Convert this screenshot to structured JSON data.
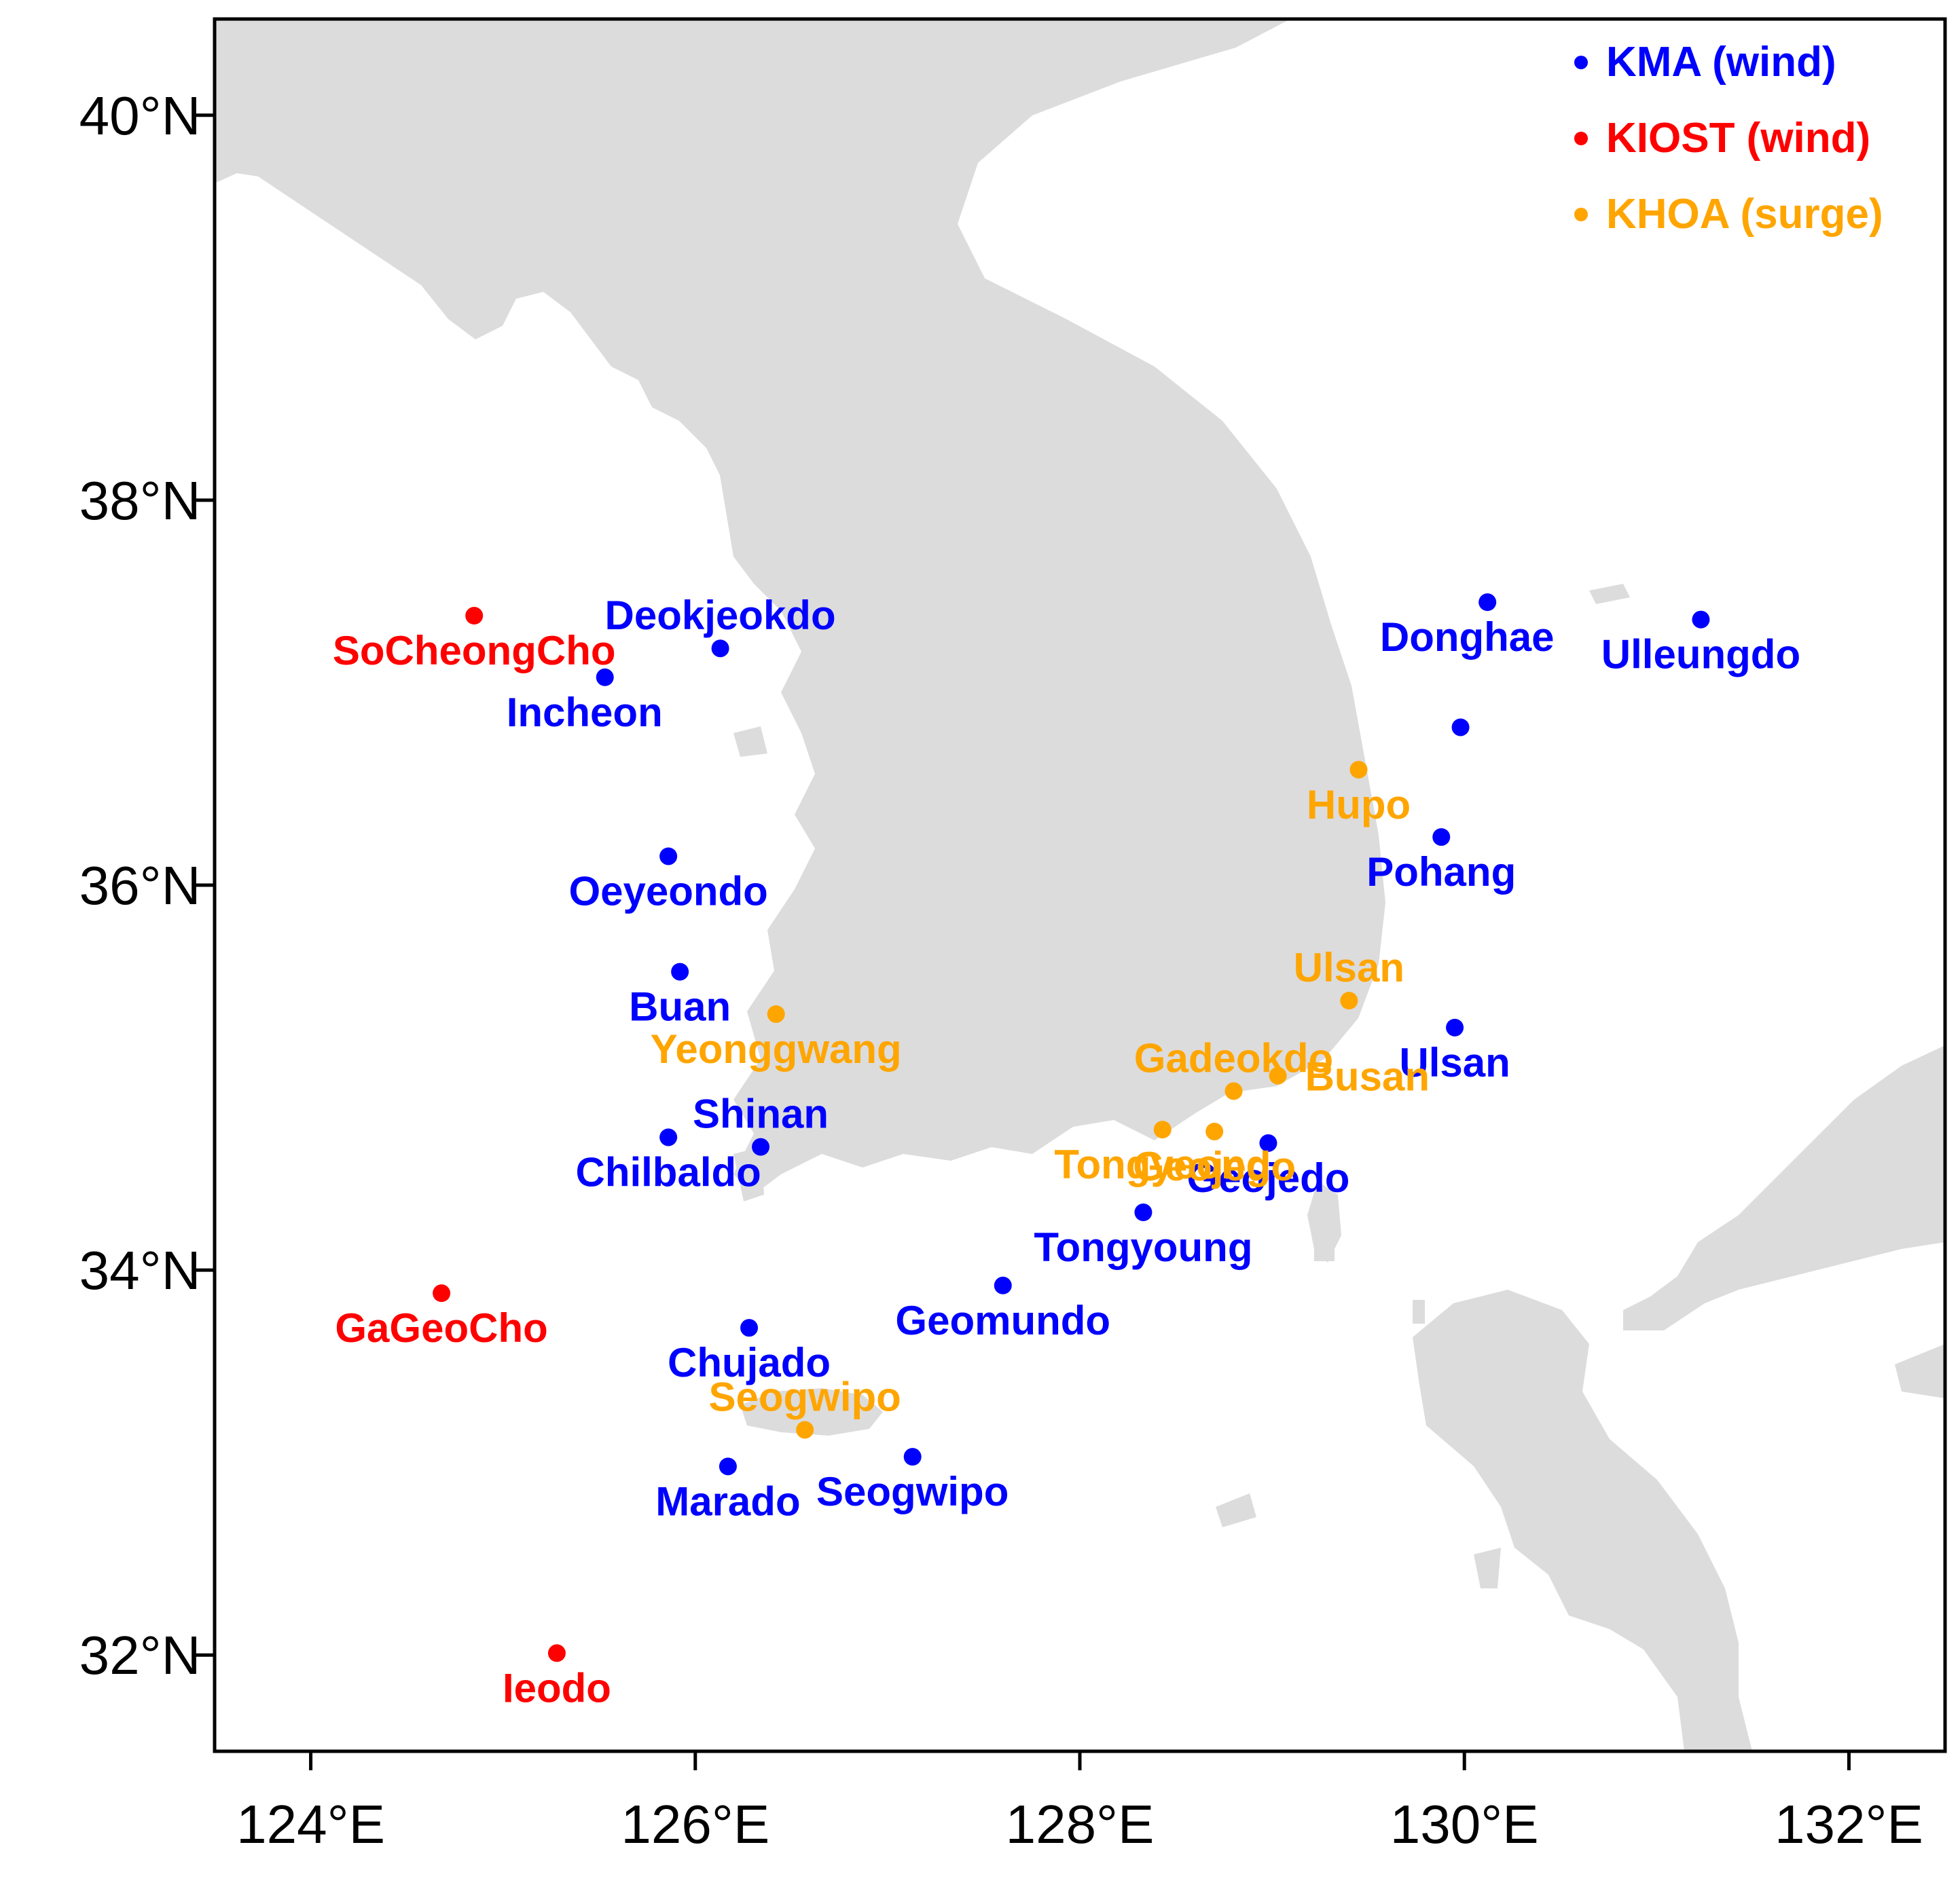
{
  "map": {
    "type": "station-map",
    "region": "Korean Peninsula and surrounding seas",
    "extent": {
      "lon": [
        123.5,
        132.5
      ],
      "lat": [
        31.5,
        40.5
      ]
    },
    "x_ticks": [
      "124°E",
      "126°E",
      "128°E",
      "130°E",
      "132°E"
    ],
    "x_tick_values": [
      124,
      126,
      128,
      130,
      132
    ],
    "y_ticks": [
      "32°N",
      "34°N",
      "36°N",
      "38°N",
      "40°N"
    ],
    "y_tick_values": [
      32,
      34,
      36,
      38,
      40
    ],
    "colors": {
      "land": "#dcdcdc",
      "ocean": "#ffffff",
      "frame": "#000000",
      "KMA": "#0000ff",
      "KIOST": "#ff0000",
      "KHOA": "#ffa500"
    }
  },
  "legend": {
    "position": "top-right",
    "items": [
      {
        "label": "KMA (wind)",
        "group": "KMA"
      },
      {
        "label": "KIOST (wind)",
        "group": "KIOST"
      },
      {
        "label": "KHOA (surge)",
        "group": "KHOA"
      }
    ]
  },
  "stations": [
    {
      "name": "Deokjeokdo",
      "group": "KMA",
      "lon": 126.13,
      "lat": 37.23,
      "label_anchor": "middle",
      "label_offset": "above"
    },
    {
      "name": "Incheon",
      "group": "KMA",
      "lon": 125.53,
      "lat": 37.08,
      "label_anchor": "middle",
      "label_offset": "below-left"
    },
    {
      "name": "Oeyeondo",
      "group": "KMA",
      "lon": 125.86,
      "lat": 36.15,
      "label_anchor": "middle",
      "label_offset": "below"
    },
    {
      "name": "Buan",
      "group": "KMA",
      "lon": 125.92,
      "lat": 35.55,
      "label_anchor": "middle",
      "label_offset": "below"
    },
    {
      "name": "Shinan",
      "group": "KMA",
      "lon": 126.34,
      "lat": 34.64,
      "label_anchor": "middle",
      "label_offset": "above"
    },
    {
      "name": "Chilbaldo",
      "group": "KMA",
      "lon": 125.86,
      "lat": 34.69,
      "label_anchor": "middle",
      "label_offset": "below"
    },
    {
      "name": "Chujado",
      "group": "KMA",
      "lon": 126.28,
      "lat": 33.7,
      "label_anchor": "middle",
      "label_offset": "below"
    },
    {
      "name": "Marado",
      "group": "KMA",
      "lon": 126.17,
      "lat": 32.98,
      "label_anchor": "middle",
      "label_offset": "below"
    },
    {
      "name": "Seogwipo",
      "group": "KMA",
      "lon": 127.13,
      "lat": 33.03,
      "label_anchor": "middle",
      "label_offset": "below"
    },
    {
      "name": "Geomundo",
      "group": "KMA",
      "lon": 127.6,
      "lat": 33.92,
      "label_anchor": "middle",
      "label_offset": "below"
    },
    {
      "name": "Tongyoung",
      "group": "KMA",
      "lon": 128.33,
      "lat": 34.3,
      "label_anchor": "middle",
      "label_offset": "below"
    },
    {
      "name": "Geojedo",
      "group": "KMA",
      "lon": 128.98,
      "lat": 34.66,
      "label_anchor": "middle",
      "label_offset": "below"
    },
    {
      "name": "Ulsan",
      "group": "KMA",
      "lon": 129.95,
      "lat": 35.26,
      "label_anchor": "middle",
      "label_offset": "below"
    },
    {
      "name": "Pohang",
      "group": "KMA",
      "lon": 129.88,
      "lat": 36.25,
      "label_anchor": "middle",
      "label_offset": "below"
    },
    {
      "name": "Donghae",
      "group": "KMA",
      "lon": 130.12,
      "lat": 37.47,
      "label_anchor": "middle",
      "label_offset": "below-left"
    },
    {
      "name": "Ulleungdo",
      "group": "KMA",
      "lon": 131.23,
      "lat": 37.38,
      "label_anchor": "middle",
      "label_offset": "below"
    },
    {
      "name": "",
      "group": "KMA",
      "lon": 129.98,
      "lat": 36.82
    },
    {
      "name": "SoCheongCho",
      "group": "KIOST",
      "lon": 124.85,
      "lat": 37.4,
      "label_anchor": "middle",
      "label_offset": "below"
    },
    {
      "name": "GaGeoCho",
      "group": "KIOST",
      "lon": 124.68,
      "lat": 33.88,
      "label_anchor": "middle",
      "label_offset": "below"
    },
    {
      "name": "Ieodo",
      "group": "KIOST",
      "lon": 125.28,
      "lat": 32.01,
      "label_anchor": "middle",
      "label_offset": "below"
    },
    {
      "name": "Hupo",
      "group": "KHOA",
      "lon": 129.45,
      "lat": 36.6,
      "label_anchor": "middle",
      "label_offset": "below"
    },
    {
      "name": "Ulsan",
      "group": "KHOA",
      "lon": 129.4,
      "lat": 35.4,
      "label_anchor": "middle",
      "label_offset": "above"
    },
    {
      "name": "Yeonggwang",
      "group": "KHOA",
      "lon": 126.42,
      "lat": 35.33,
      "label_anchor": "middle",
      "label_offset": "below"
    },
    {
      "name": "Gadeokdo",
      "group": "KHOA",
      "lon": 128.8,
      "lat": 34.93,
      "label_anchor": "middle",
      "label_offset": "above"
    },
    {
      "name": "Busan",
      "group": "KHOA",
      "lon": 129.03,
      "lat": 35.01,
      "label_anchor": "start",
      "label_offset": "right"
    },
    {
      "name": "Tongyeong",
      "group": "KHOA",
      "lon": 128.43,
      "lat": 34.73,
      "label_anchor": "middle",
      "label_offset": "below"
    },
    {
      "name": "Geojedo",
      "group": "KHOA",
      "lon": 128.7,
      "lat": 34.72,
      "label_anchor": "middle",
      "label_offset": "below"
    },
    {
      "name": "Seogwipo",
      "group": "KHOA",
      "lon": 126.57,
      "lat": 33.17,
      "label_anchor": "middle",
      "label_offset": "above"
    }
  ]
}
